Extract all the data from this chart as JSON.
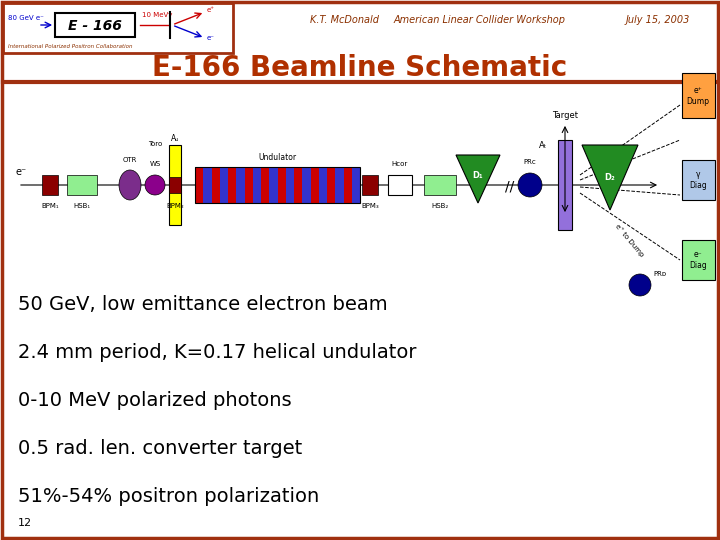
{
  "title": "E-166 Beamline Schematic",
  "title_color": "#B03000",
  "header_left": "K.T. McDonald",
  "header_center": "American Linear Collider Workshop",
  "header_right": "July 15, 2003",
  "header_color": "#8B3000",
  "bg_color": "#FFFFFF",
  "border_color": "#A03010",
  "bullet_points": [
    "50 GeV, low emittance electron beam",
    "2.4 mm period, K=0.17 helical undulator",
    "0-10 MeV polarized photons",
    "0.5 rad. len. converter target",
    "51%-54% positron polarization"
  ],
  "bullet_color": "#000000",
  "bullet_fontsize": 14,
  "footer_text": "12",
  "logo_text": "E - 166",
  "logo_sub": "International Polarized Positron Collaboration"
}
